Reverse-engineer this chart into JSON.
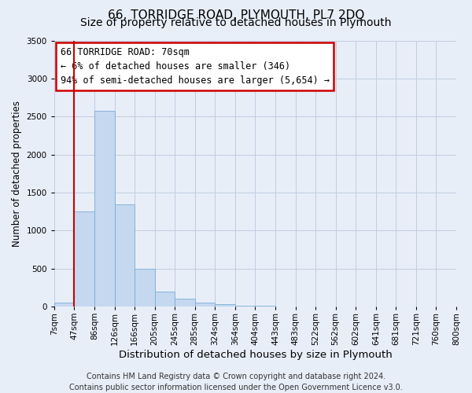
{
  "title": "66, TORRIDGE ROAD, PLYMOUTH, PL7 2DQ",
  "subtitle": "Size of property relative to detached houses in Plymouth",
  "xlabel": "Distribution of detached houses by size in Plymouth",
  "ylabel": "Number of detached properties",
  "bin_labels": [
    "7sqm",
    "47sqm",
    "86sqm",
    "126sqm",
    "166sqm",
    "205sqm",
    "245sqm",
    "285sqm",
    "324sqm",
    "364sqm",
    "404sqm",
    "443sqm",
    "483sqm",
    "522sqm",
    "562sqm",
    "602sqm",
    "641sqm",
    "681sqm",
    "721sqm",
    "760sqm",
    "800sqm"
  ],
  "bar_values": [
    50,
    1250,
    2570,
    1340,
    500,
    200,
    105,
    50,
    25,
    10,
    5,
    0,
    0,
    0,
    0,
    0,
    0,
    0,
    0,
    0
  ],
  "bar_color": "#c5d8f0",
  "bar_edge_color": "#7aadd4",
  "vline_x": 1,
  "vline_color": "#cc0000",
  "annotation_box_text": "66 TORRIDGE ROAD: 70sqm\n← 6% of detached houses are smaller (346)\n94% of semi-detached houses are larger (5,654) →",
  "annotation_box_color": "#ffffff",
  "annotation_box_edge_color": "#cc0000",
  "ylim": [
    0,
    3500
  ],
  "yticks": [
    0,
    500,
    1000,
    1500,
    2000,
    2500,
    3000,
    3500
  ],
  "footer_line1": "Contains HM Land Registry data © Crown copyright and database right 2024.",
  "footer_line2": "Contains public sector information licensed under the Open Government Licence v3.0.",
  "background_color": "#e8eef8",
  "plot_bg_color": "#e8eef8",
  "grid_color": "#c0cce0",
  "title_fontsize": 11,
  "subtitle_fontsize": 10,
  "xlabel_fontsize": 9.5,
  "ylabel_fontsize": 8.5,
  "tick_fontsize": 7.5,
  "annot_fontsize": 8.5,
  "footer_fontsize": 7
}
